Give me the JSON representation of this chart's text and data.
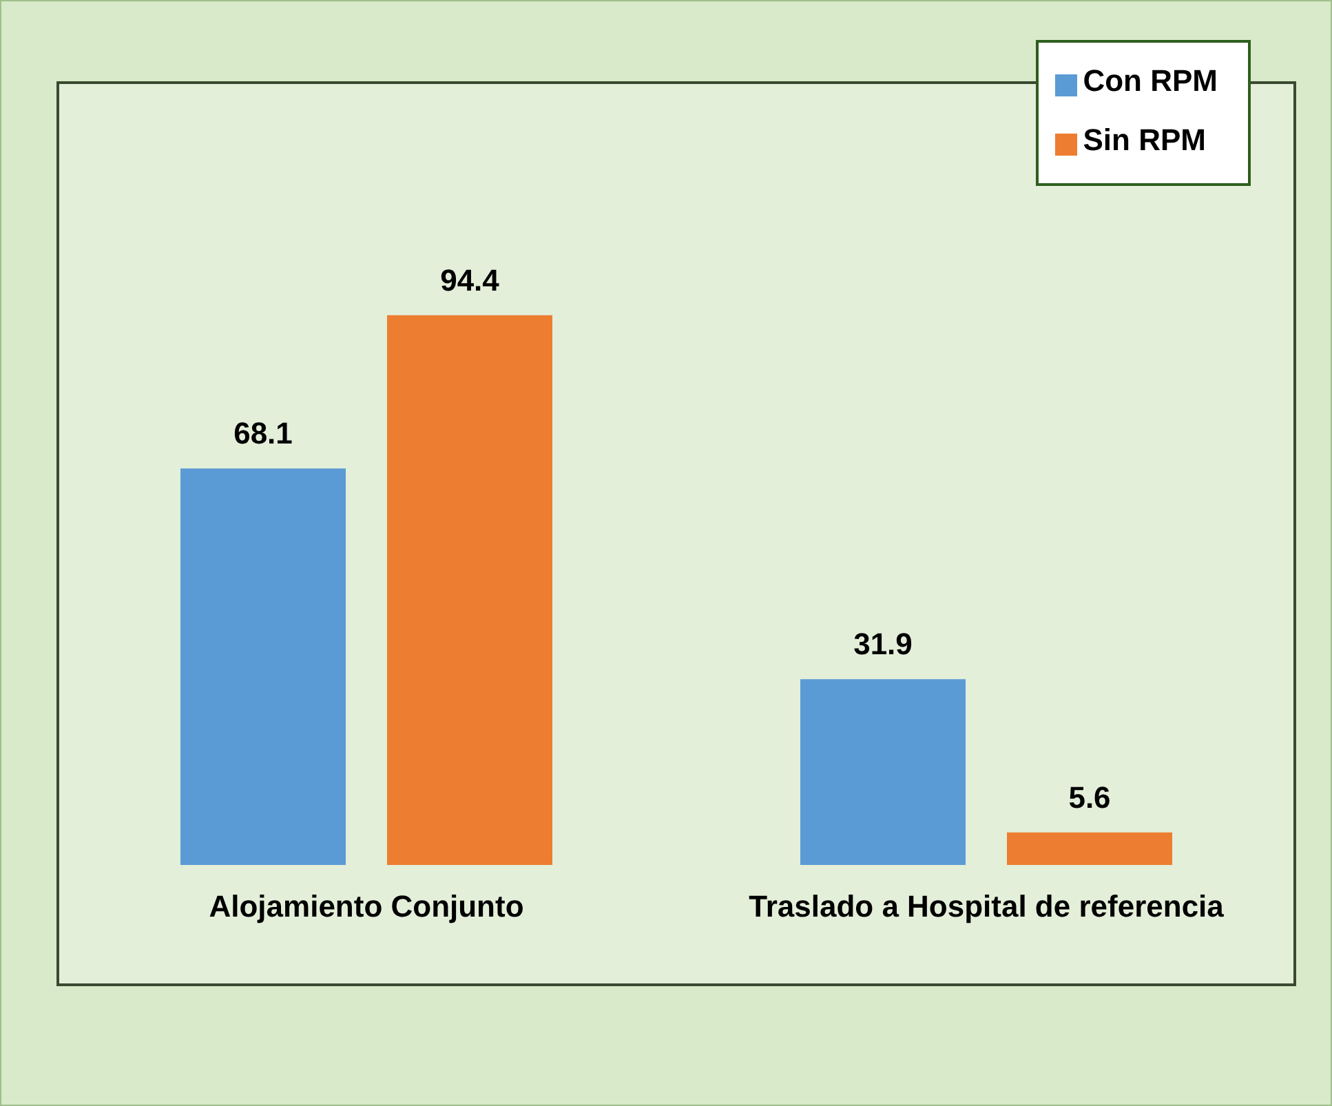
{
  "chart_data": {
    "type": "bar",
    "categories": [
      "Alojamiento  Conjunto",
      "Traslado a Hospital de referencia"
    ],
    "series": [
      {
        "name": "Con RPM",
        "color": "#5b9bd5",
        "values": [
          68.1,
          31.9
        ]
      },
      {
        "name": "Sin RPM",
        "color": "#ed7d31",
        "values": [
          94.4,
          5.6
        ]
      }
    ],
    "data_labels": true,
    "legend": "top right",
    "grid": false
  }
}
